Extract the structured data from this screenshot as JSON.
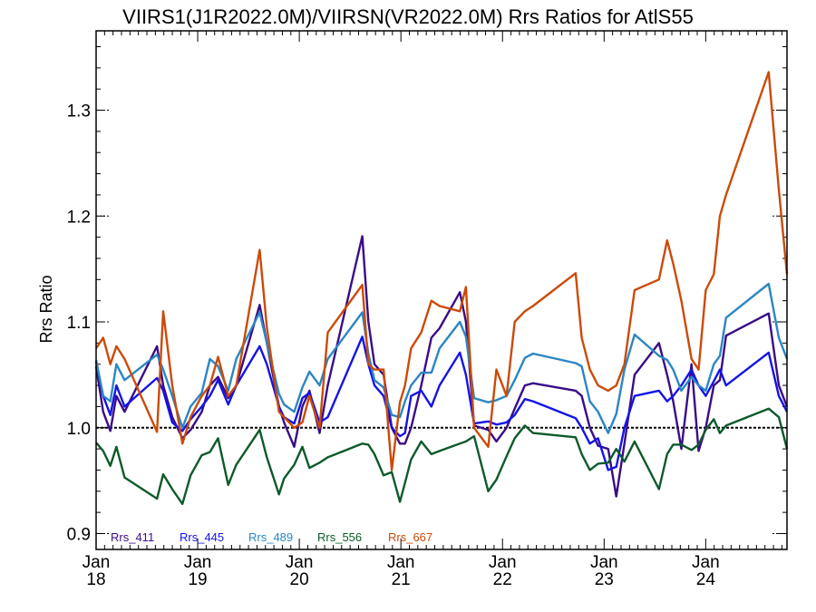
{
  "chart_data": {
    "type": "line",
    "title": "VIIRS1(J1R2022.0M)/VIIRSN(VR2022.0M)  Rrs Ratios for AtlS55",
    "xlabel": "",
    "ylabel": "Rrs Ratio",
    "xlim": [
      2018.0,
      2024.8
    ],
    "ylim": [
      0.885,
      1.375
    ],
    "y_ticks": [
      0.9,
      1.0,
      1.1,
      1.2,
      1.3
    ],
    "y_tick_labels": [
      "0.9",
      "1.0",
      "1.1",
      "1.2",
      "1.3"
    ],
    "x_ticks": [
      2018,
      2019,
      2020,
      2021,
      2022,
      2023,
      2024
    ],
    "x_tick_labels": [
      [
        "Jan",
        "18"
      ],
      [
        "Jan",
        "19"
      ],
      [
        "Jan",
        "20"
      ],
      [
        "Jan",
        "21"
      ],
      [
        "Jan",
        "22"
      ],
      [
        "Jan",
        "23"
      ],
      [
        "Jan",
        "24"
      ]
    ],
    "reference_line": 1.0,
    "legend_position": "bottom-left",
    "x": [
      2018.0,
      2018.07,
      2018.14,
      2018.2,
      2018.28,
      2018.6,
      2018.66,
      2018.75,
      2018.85,
      2018.93,
      2019.04,
      2019.12,
      2019.2,
      2019.3,
      2019.38,
      2019.61,
      2019.68,
      2019.8,
      2019.85,
      2019.95,
      2020.03,
      2020.1,
      2020.2,
      2020.28,
      2020.62,
      2020.68,
      2020.74,
      2020.83,
      2020.91,
      2020.99,
      2021.04,
      2021.1,
      2021.2,
      2021.3,
      2021.38,
      2021.58,
      2021.64,
      2021.72,
      2021.86,
      2021.94,
      2022.04,
      2022.12,
      2022.22,
      2022.3,
      2022.72,
      2022.78,
      2022.86,
      2022.94,
      2023.04,
      2023.12,
      2023.2,
      2023.3,
      2023.54,
      2023.62,
      2023.68,
      2023.76,
      2023.86,
      2023.93,
      2024.0,
      2024.08,
      2024.14,
      2024.2,
      2024.62,
      2024.72,
      2024.8
    ],
    "series": [
      {
        "name": "Rrs_411",
        "color": "#3a0c86",
        "values": [
          1.058,
          1.015,
          0.997,
          1.03,
          1.015,
          1.077,
          1.04,
          1.01,
          0.99,
          0.998,
          1.015,
          1.04,
          1.048,
          1.028,
          1.04,
          1.116,
          1.08,
          1.02,
          1.005,
          0.982,
          1.02,
          1.035,
          0.995,
          1.04,
          1.181,
          1.1,
          1.06,
          1.05,
          1.0,
          0.985,
          0.985,
          1.0,
          1.04,
          1.085,
          1.094,
          1.128,
          1.1,
          1.002,
          0.998,
          0.987,
          1.0,
          1.018,
          1.04,
          1.042,
          1.035,
          1.03,
          1.0,
          0.983,
          0.98,
          0.935,
          0.985,
          1.05,
          1.08,
          1.05,
          1.025,
          0.98,
          1.06,
          0.978,
          1.0,
          1.04,
          1.045,
          1.087,
          1.108,
          1.04,
          1.02
        ]
      },
      {
        "name": "Rrs_445",
        "color": "#1414e6",
        "values": [
          1.062,
          1.03,
          1.012,
          1.04,
          1.02,
          1.047,
          1.035,
          1.005,
          0.997,
          1.008,
          1.02,
          1.03,
          1.045,
          1.022,
          1.04,
          1.077,
          1.06,
          1.02,
          1.01,
          1.004,
          1.028,
          1.033,
          1.005,
          1.01,
          1.086,
          1.06,
          1.04,
          1.03,
          1.0,
          0.992,
          0.995,
          1.03,
          1.035,
          1.02,
          1.04,
          1.071,
          1.05,
          1.004,
          1.006,
          1.003,
          1.005,
          1.012,
          1.027,
          1.025,
          1.009,
          1.0,
          0.985,
          0.99,
          0.96,
          0.963,
          1.0,
          1.03,
          1.035,
          1.025,
          1.03,
          1.04,
          1.055,
          1.04,
          1.03,
          1.044,
          1.055,
          1.04,
          1.071,
          1.03,
          1.015
        ]
      },
      {
        "name": "Rrs_489",
        "color": "#2b86c4",
        "values": [
          1.064,
          1.03,
          1.025,
          1.06,
          1.045,
          1.069,
          1.055,
          1.03,
          1.0,
          1.02,
          1.033,
          1.065,
          1.058,
          1.035,
          1.065,
          1.109,
          1.08,
          1.032,
          1.022,
          1.015,
          1.038,
          1.053,
          1.04,
          1.065,
          1.109,
          1.07,
          1.045,
          1.038,
          1.012,
          1.01,
          1.025,
          1.04,
          1.052,
          1.052,
          1.075,
          1.1,
          1.086,
          1.028,
          1.024,
          1.026,
          1.03,
          1.045,
          1.066,
          1.07,
          1.061,
          1.058,
          1.025,
          1.015,
          0.995,
          1.013,
          1.055,
          1.088,
          1.068,
          1.064,
          1.055,
          1.035,
          1.048,
          1.04,
          1.035,
          1.06,
          1.068,
          1.104,
          1.136,
          1.085,
          1.065
        ]
      },
      {
        "name": "Rrs_556",
        "color": "#0d5a2a",
        "values": [
          0.986,
          0.978,
          0.964,
          0.982,
          0.953,
          0.933,
          0.956,
          0.942,
          0.928,
          0.955,
          0.974,
          0.977,
          0.99,
          0.946,
          0.965,
          0.998,
          0.972,
          0.937,
          0.952,
          0.965,
          0.982,
          0.962,
          0.967,
          0.972,
          0.985,
          0.984,
          0.975,
          0.955,
          0.958,
          0.93,
          0.948,
          0.97,
          0.987,
          0.975,
          0.978,
          0.985,
          0.987,
          0.992,
          0.94,
          0.951,
          0.973,
          0.99,
          1.002,
          0.995,
          0.991,
          0.975,
          0.96,
          0.966,
          0.967,
          0.98,
          0.968,
          0.987,
          0.942,
          0.975,
          0.984,
          0.984,
          0.979,
          0.984,
          0.998,
          1.008,
          0.995,
          1.002,
          1.018,
          1.01,
          0.98
        ]
      },
      {
        "name": "Rrs_667",
        "color": "#cc4a08",
        "values": [
          1.075,
          1.085,
          1.06,
          1.077,
          1.065,
          0.996,
          1.11,
          1.04,
          0.985,
          1.01,
          1.03,
          1.04,
          1.067,
          1.03,
          1.04,
          1.168,
          1.095,
          1.015,
          1.01,
          1.0,
          1.005,
          1.03,
          1.0,
          1.09,
          1.135,
          1.06,
          1.055,
          1.055,
          0.96,
          1.024,
          1.04,
          1.075,
          1.09,
          1.12,
          1.115,
          1.11,
          1.133,
          1.0,
          0.982,
          1.055,
          1.03,
          1.1,
          1.11,
          1.115,
          1.146,
          1.085,
          1.055,
          1.04,
          1.035,
          1.04,
          1.06,
          1.13,
          1.14,
          1.177,
          1.155,
          1.12,
          1.065,
          1.055,
          1.13,
          1.145,
          1.2,
          1.22,
          1.336,
          1.225,
          1.145
        ]
      }
    ]
  }
}
